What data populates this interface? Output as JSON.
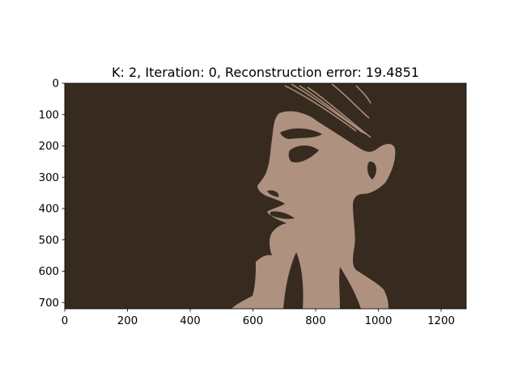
{
  "figure": {
    "title": "K: 2, Iteration: 0, Reconstruction error: 19.4851"
  },
  "image": {
    "description_colors": {
      "background_cluster": "#372b1f",
      "subject_cluster": "#ae917f"
    },
    "k": 2
  },
  "axes": {
    "x_ticks": [
      "0",
      "200",
      "400",
      "600",
      "800",
      "1000",
      "1200"
    ],
    "y_ticks": [
      "0",
      "100",
      "200",
      "300",
      "400",
      "500",
      "600",
      "700"
    ],
    "xlim": [
      0,
      1280
    ],
    "ylim": [
      720,
      0
    ]
  }
}
